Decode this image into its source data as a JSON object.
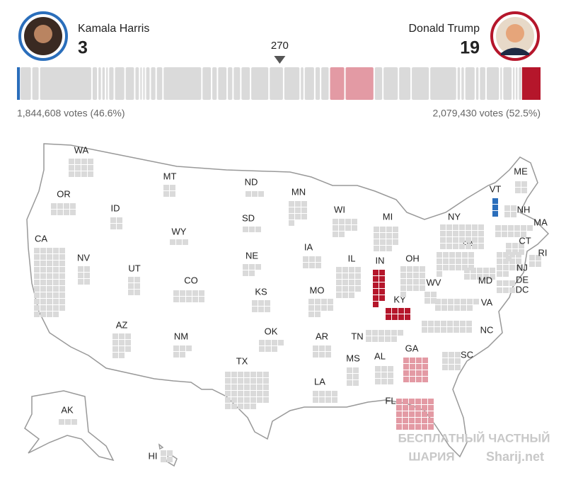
{
  "candidates": [
    {
      "name": "Kamala Harris",
      "electoral_votes": 3,
      "popular_vote": "1,844,608 votes (46.6%)",
      "color": "#2a6ebb"
    },
    {
      "name": "Donald Trump",
      "electoral_votes": 19,
      "popular_vote": "2,079,430 votes (52.5%)",
      "color": "#b5162b"
    }
  ],
  "threshold": 270,
  "states": [
    {
      "label": "WA",
      "votes": 12,
      "color": "#dadada"
    },
    {
      "label": "OR",
      "votes": 8,
      "color": "#dadada"
    },
    {
      "label": "CA",
      "votes": 54,
      "color": "#dadada"
    },
    {
      "label": "NV",
      "votes": 6,
      "color": "#dadada"
    },
    {
      "label": "ID",
      "votes": 4,
      "color": "#dadada"
    },
    {
      "label": "MT",
      "votes": 4,
      "color": "#dadada"
    },
    {
      "label": "WY",
      "votes": 3,
      "color": "#dadada"
    },
    {
      "label": "UT",
      "votes": 6,
      "color": "#dadada"
    },
    {
      "label": "AZ",
      "votes": 11,
      "color": "#dadada"
    },
    {
      "label": "CO",
      "votes": 10,
      "color": "#dadada"
    },
    {
      "label": "NM",
      "votes": 5,
      "color": "#dadada"
    },
    {
      "label": "ND",
      "votes": 3,
      "color": "#dadada"
    },
    {
      "label": "SD",
      "votes": 3,
      "color": "#dadada"
    },
    {
      "label": "NE",
      "votes": 5,
      "color": "#dadada"
    },
    {
      "label": "KS",
      "votes": 6,
      "color": "#dadada"
    },
    {
      "label": "OK",
      "votes": 7,
      "color": "#dadada"
    },
    {
      "label": "TX",
      "votes": 40,
      "color": "#dadada"
    },
    {
      "label": "MN",
      "votes": 10,
      "color": "#dadada"
    },
    {
      "label": "IA",
      "votes": 6,
      "color": "#dadada"
    },
    {
      "label": "MO",
      "votes": 10,
      "color": "#dadada"
    },
    {
      "label": "AR",
      "votes": 6,
      "color": "#dadada"
    },
    {
      "label": "LA",
      "votes": 8,
      "color": "#dadada"
    },
    {
      "label": "WI",
      "votes": 10,
      "color": "#dadada"
    },
    {
      "label": "IL",
      "votes": 19,
      "color": "#dadada"
    },
    {
      "label": "MI",
      "votes": 15,
      "color": "#dadada"
    },
    {
      "label": "IN",
      "votes": 11,
      "color": "#b5162b"
    },
    {
      "label": "KY",
      "votes": 8,
      "color": "#b5162b"
    },
    {
      "label": "OH",
      "votes": 17,
      "color": "#dadada"
    },
    {
      "label": "WV",
      "votes": 4,
      "color": "#dadada"
    },
    {
      "label": "TN",
      "votes": 11,
      "color": "#dadada"
    },
    {
      "label": "MS",
      "votes": 6,
      "color": "#dadada"
    },
    {
      "label": "AL",
      "votes": 9,
      "color": "#dadada"
    },
    {
      "label": "GA",
      "votes": 16,
      "color": "#e39aa4"
    },
    {
      "label": "FL",
      "votes": 30,
      "color": "#e39aa4"
    },
    {
      "label": "SC",
      "votes": 9,
      "color": "#dadada"
    },
    {
      "label": "NC",
      "votes": 16,
      "color": "#dadada"
    },
    {
      "label": "VA",
      "votes": 13,
      "color": "#dadada"
    },
    {
      "label": "PA",
      "votes": 19,
      "color": "#dadada"
    },
    {
      "label": "NY",
      "votes": 28,
      "color": "#dadada"
    },
    {
      "label": "VT",
      "votes": 3,
      "color": "#2a6ebb"
    },
    {
      "label": "NH",
      "votes": 4,
      "color": "#dadada"
    },
    {
      "label": "ME",
      "votes": 4,
      "color": "#dadada"
    },
    {
      "label": "MA",
      "votes": 11,
      "color": "#dadada"
    },
    {
      "label": "RI",
      "votes": 4,
      "color": "#dadada"
    },
    {
      "label": "CT",
      "votes": 7,
      "color": "#dadada"
    },
    {
      "label": "NJ",
      "votes": 14,
      "color": "#dadada"
    },
    {
      "label": "DE",
      "votes": 3,
      "color": "#dadada"
    },
    {
      "label": "MD",
      "votes": 10,
      "color": "#dadada"
    },
    {
      "label": "DC",
      "votes": 3,
      "color": "#dadada"
    },
    {
      "label": "AK",
      "votes": 3,
      "color": "#dadada"
    },
    {
      "label": "HI",
      "votes": 4,
      "color": "#dadada"
    }
  ],
  "watermark": {
    "line1": "БЕСПЛАТНЫЙ ЧАСТНЫЙ",
    "line2": "ШАРИЯ",
    "site": "Sharij.net"
  }
}
